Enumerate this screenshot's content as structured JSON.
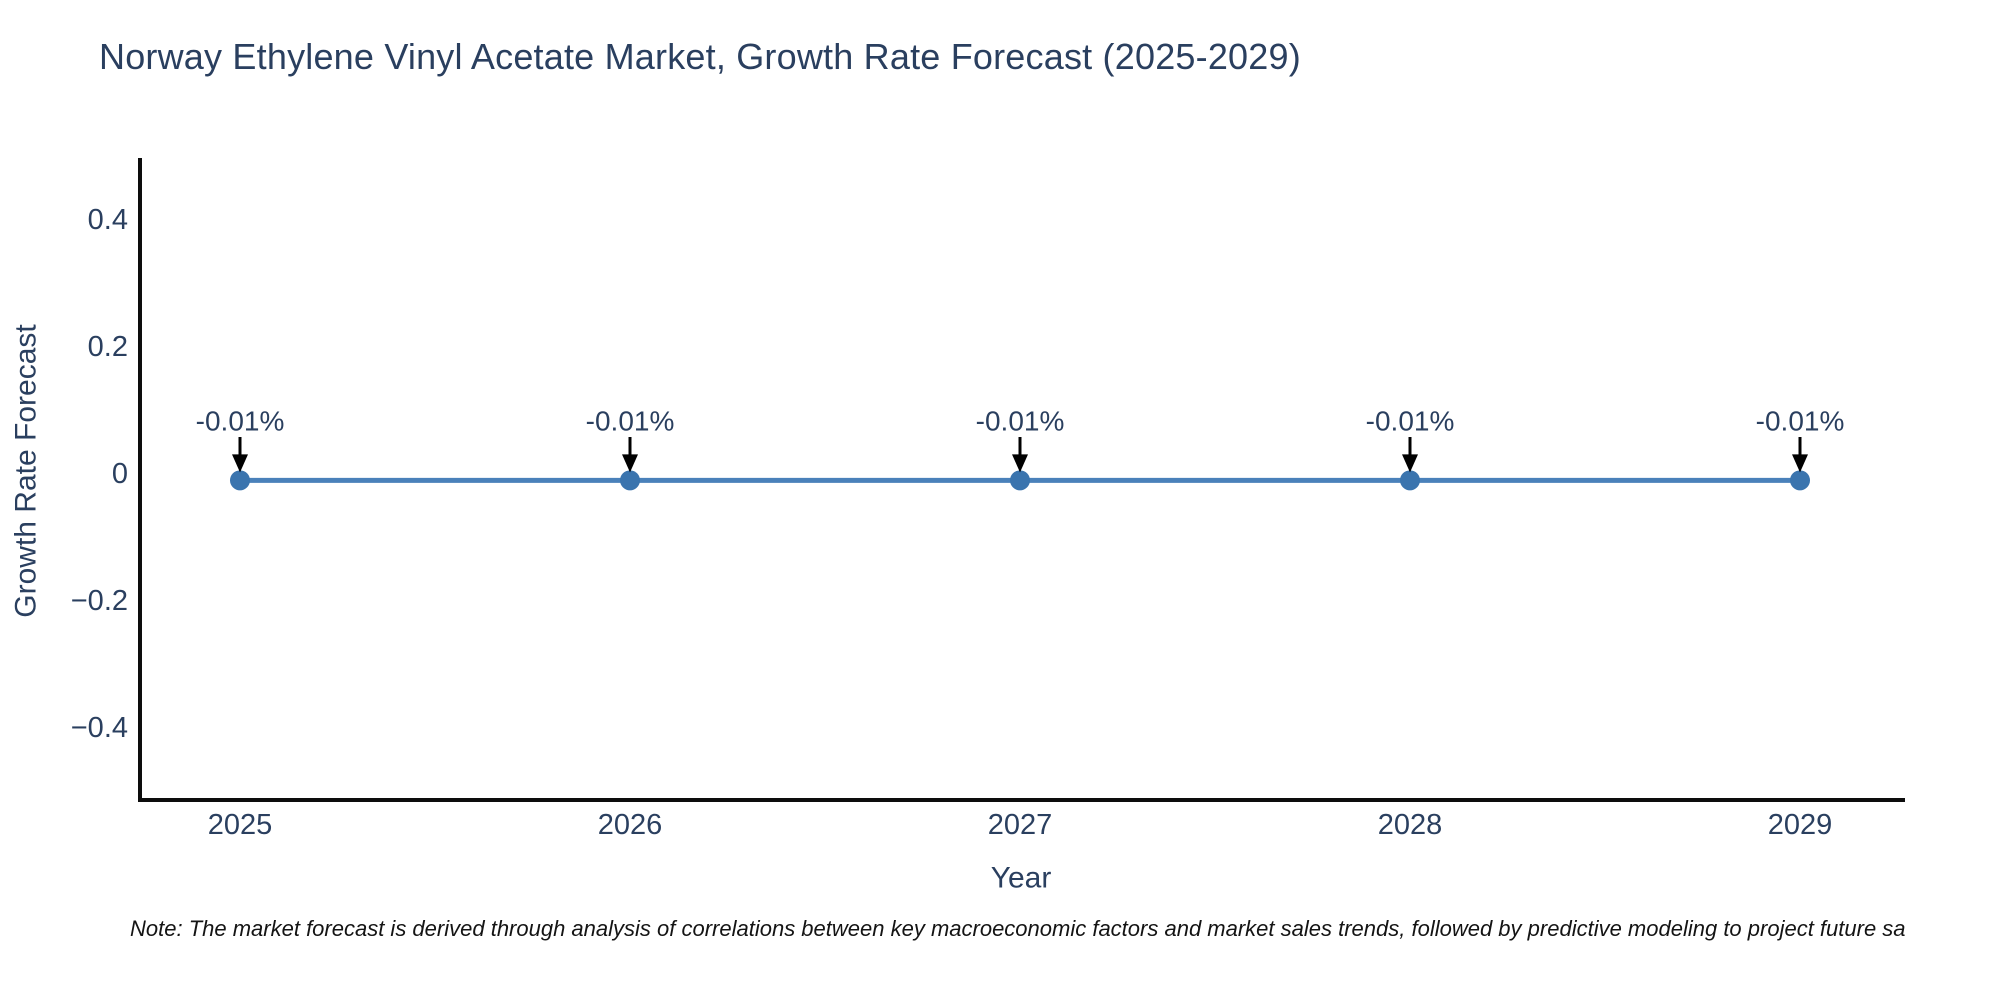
{
  "chart_data": {
    "type": "line",
    "title": "Norway Ethylene Vinyl Acetate Market, Growth Rate Forecast (2025-2029)",
    "xlabel": "Year",
    "ylabel": "Growth Rate Forecast",
    "categories": [
      "2025",
      "2026",
      "2027",
      "2028",
      "2029"
    ],
    "series": [
      {
        "name": "Growth Rate Forecast",
        "values": [
          -0.01,
          -0.01,
          -0.01,
          -0.01,
          -0.01
        ]
      }
    ],
    "point_labels": [
      "-0.01%",
      "-0.01%",
      "-0.01%",
      "-0.01%",
      "-0.01%"
    ],
    "y_tick_labels": [
      "0.4",
      "0.2",
      "0",
      "−0.2",
      "−0.4"
    ],
    "y_tick_values": [
      0.4,
      0.2,
      0,
      -0.2,
      -0.4
    ],
    "ylim": [
      -0.52,
      0.5
    ],
    "grid": false,
    "legend_visible": false,
    "marker_shape": "circle",
    "annotation_style": "down-arrow",
    "colors": {
      "line": "#4a81ba",
      "marker": "#3a74ae",
      "axis": "#0d0d0d",
      "text": "#2a3f5f",
      "arrow": "#000000",
      "note": "#141414",
      "background": "#ffffff"
    },
    "note": "Note: The market forecast is derived through analysis of correlations between key macroeconomic factors and market sales trends, followed by predictive modeling to project future sa"
  }
}
